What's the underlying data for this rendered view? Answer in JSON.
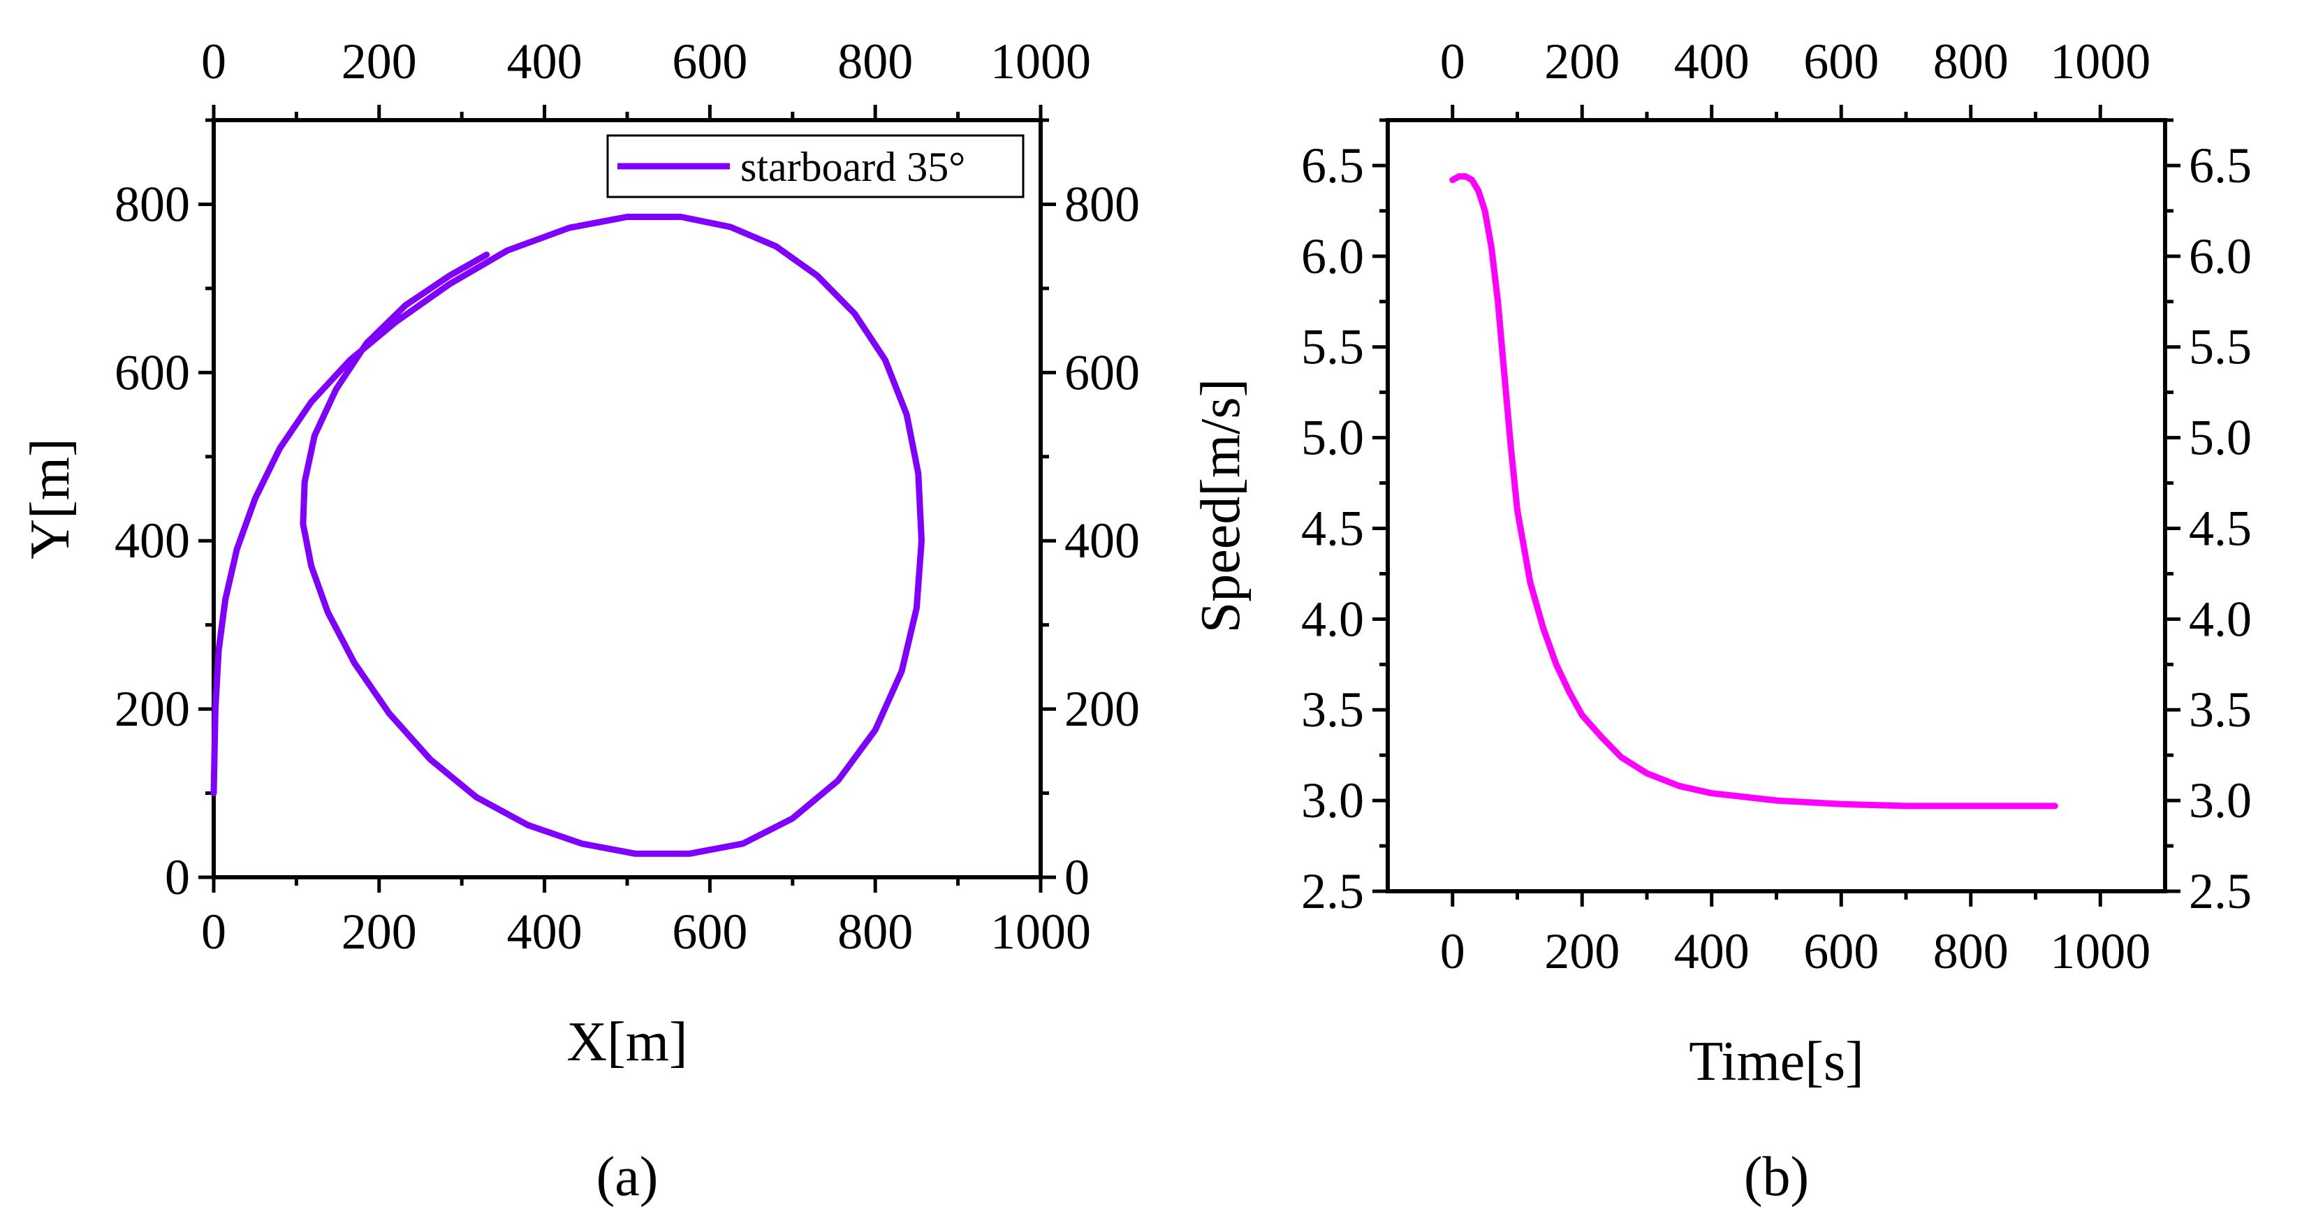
{
  "chart_data": [
    {
      "type": "line",
      "panel_label": "(a)",
      "xlabel": "X[m]",
      "ylabel": "Y[m]",
      "xlim": [
        0,
        1000
      ],
      "ylim": [
        0,
        900
      ],
      "x_ticks": [
        0,
        200,
        400,
        600,
        800,
        1000
      ],
      "y_ticks": [
        0,
        200,
        400,
        600,
        800
      ],
      "x_tick_labels": [
        "0",
        "200",
        "400",
        "600",
        "800",
        "1000"
      ],
      "y_tick_labels": [
        "0",
        "200",
        "400",
        "600",
        "800"
      ],
      "mirror_axes": true,
      "legend_position": "top-right",
      "series": [
        {
          "name": "starboard 35°",
          "color": "#8000ff",
          "x": [
            0,
            2,
            6,
            14,
            28,
            50,
            80,
            118,
            165,
            220,
            285,
            355,
            430,
            500,
            565,
            625,
            680,
            730,
            775,
            812,
            838,
            852,
            856,
            850,
            832,
            800,
            755,
            700,
            640,
            575,
            510,
            445,
            380,
            318,
            262,
            212,
            170,
            138,
            118,
            108,
            110,
            122,
            148,
            185,
            232,
            285,
            330
          ],
          "y": [
            100,
            200,
            270,
            330,
            390,
            450,
            510,
            565,
            615,
            660,
            705,
            745,
            772,
            785,
            785,
            773,
            750,
            715,
            670,
            615,
            550,
            480,
            400,
            320,
            245,
            175,
            115,
            70,
            40,
            28,
            28,
            40,
            62,
            95,
            140,
            195,
            255,
            315,
            370,
            420,
            470,
            525,
            580,
            635,
            680,
            715,
            740
          ]
        }
      ]
    },
    {
      "type": "line",
      "panel_label": "(b)",
      "xlabel": "Time[s]",
      "ylabel": "Speed[m/s]",
      "xlim": [
        -100,
        1100
      ],
      "ylim": [
        2.5,
        6.75
      ],
      "x_ticks": [
        0,
        200,
        400,
        600,
        800,
        1000
      ],
      "y_ticks": [
        2.5,
        3.0,
        3.5,
        4.0,
        4.5,
        5.0,
        5.5,
        6.0,
        6.5
      ],
      "x_tick_labels": [
        "0",
        "200",
        "400",
        "600",
        "800",
        "1000"
      ],
      "y_tick_labels": [
        "2.5",
        "3.0",
        "3.5",
        "4.0",
        "4.5",
        "5.0",
        "5.5",
        "6.0",
        "6.5"
      ],
      "mirror_axes": true,
      "series": [
        {
          "name": "speed",
          "color": "#ff00ff",
          "x": [
            0,
            10,
            20,
            30,
            40,
            50,
            60,
            70,
            80,
            90,
            100,
            120,
            140,
            160,
            180,
            200,
            230,
            260,
            300,
            350,
            400,
            450,
            500,
            600,
            700,
            800,
            930
          ],
          "y": [
            6.42,
            6.44,
            6.44,
            6.42,
            6.36,
            6.25,
            6.05,
            5.75,
            5.35,
            4.95,
            4.6,
            4.2,
            3.95,
            3.75,
            3.6,
            3.47,
            3.35,
            3.24,
            3.15,
            3.08,
            3.04,
            3.02,
            3.0,
            2.98,
            2.97,
            2.97,
            2.97
          ]
        }
      ]
    }
  ]
}
